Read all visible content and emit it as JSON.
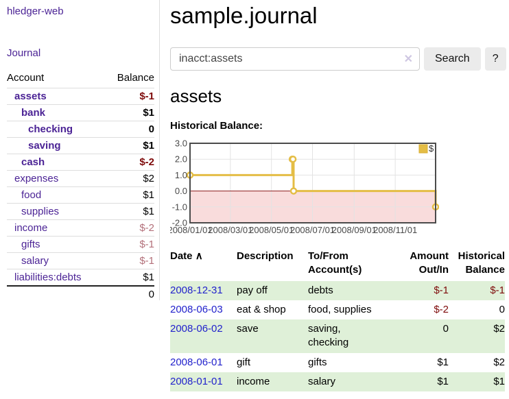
{
  "app": {
    "title": "hledger-web"
  },
  "sidebar": {
    "journal_label": "Journal",
    "account_header": "Account",
    "balance_header": "Balance",
    "accounts": [
      {
        "name": "assets",
        "indent": 1,
        "bold": true,
        "balance": "$-1",
        "neg": "strong",
        "link": "purple"
      },
      {
        "name": "bank",
        "indent": 2,
        "bold": true,
        "balance": "$1",
        "neg": "none",
        "link": "purple"
      },
      {
        "name": "checking",
        "indent": 3,
        "bold": true,
        "balance": "0",
        "neg": "none",
        "link": "purple"
      },
      {
        "name": "saving",
        "indent": 3,
        "bold": true,
        "balance": "$1",
        "neg": "none",
        "link": "purple"
      },
      {
        "name": "cash",
        "indent": 2,
        "bold": true,
        "balance": "$-2",
        "neg": "strong",
        "link": "purple"
      },
      {
        "name": "expenses",
        "indent": 1,
        "bold": false,
        "balance": "$2",
        "neg": "none",
        "link": "purple"
      },
      {
        "name": "food",
        "indent": 2,
        "bold": false,
        "balance": "$1",
        "neg": "none",
        "link": "purple"
      },
      {
        "name": "supplies",
        "indent": 2,
        "bold": false,
        "balance": "$1",
        "neg": "none",
        "link": "purple"
      },
      {
        "name": "income",
        "indent": 1,
        "bold": false,
        "balance": "$-2",
        "neg": "soft",
        "link": "purple"
      },
      {
        "name": "gifts",
        "indent": 2,
        "bold": false,
        "balance": "$-1",
        "neg": "soft",
        "link": "purple"
      },
      {
        "name": "salary",
        "indent": 2,
        "bold": false,
        "balance": "$-1",
        "neg": "soft",
        "link": "blue"
      },
      {
        "name": "liabilities:debts",
        "indent": 1,
        "bold": false,
        "balance": "$1",
        "neg": "none",
        "link": "purple"
      }
    ],
    "total": "0"
  },
  "main": {
    "title": "sample.journal",
    "search": {
      "value": "inacct:assets",
      "clear_icon": "✕",
      "search_button": "Search",
      "help_button": "?"
    },
    "account_heading": "assets",
    "chart_title": "Historical Balance:"
  },
  "chart_data": {
    "type": "line",
    "step": true,
    "title": "Historical Balance:",
    "x_start": "2008-01-01",
    "x_end": "2008-12-31",
    "ylim": [
      -2,
      3
    ],
    "y_ticks": [
      "3.0",
      "2.0",
      "1.0",
      "0.0",
      "-1.0",
      "-2.0"
    ],
    "x_ticks": [
      "2008/01/01",
      "2008/03/01",
      "2008/05/01",
      "2008/07/01",
      "2008/09/01",
      "2008/11/01"
    ],
    "series": [
      {
        "name": "$",
        "color": "#e4bd45",
        "points": [
          [
            "2008-01-01",
            1
          ],
          [
            "2008-06-01",
            2
          ],
          [
            "2008-06-02",
            2
          ],
          [
            "2008-06-03",
            0
          ],
          [
            "2008-12-31",
            -1
          ]
        ]
      }
    ],
    "legend_label": "$",
    "legend_position": "top-right",
    "grid": true,
    "grid_color": "#e3e3e3",
    "border_color": "#4b4b4b",
    "negative_region_color": "#f9dcdc",
    "zero_line_color": "#8b1a1a",
    "tick_text_color": "#484848"
  },
  "register": {
    "headers": {
      "date": "Date",
      "sort_icon": "∧",
      "description": "Description",
      "accounts": "To/From Account(s)",
      "amount": "Amount Out/In",
      "balance": "Historical Balance"
    },
    "rows": [
      {
        "date": "2008-12-31",
        "description": "pay off",
        "accounts": "debts",
        "amount": "$-1",
        "amount_neg": true,
        "balance": "$-1",
        "balance_neg": true
      },
      {
        "date": "2008-06-03",
        "description": "eat & shop",
        "accounts": "food, supplies",
        "amount": "$-2",
        "amount_neg": true,
        "balance": "0",
        "balance_neg": false
      },
      {
        "date": "2008-06-02",
        "description": "save",
        "accounts": "saving,\nchecking",
        "amount": "0",
        "amount_neg": false,
        "balance": "$2",
        "balance_neg": false
      },
      {
        "date": "2008-06-01",
        "description": "gift",
        "accounts": "gifts",
        "amount": "$1",
        "amount_neg": false,
        "balance": "$2",
        "balance_neg": false
      },
      {
        "date": "2008-01-01",
        "description": "income",
        "accounts": "salary",
        "amount": "$1",
        "amount_neg": false,
        "balance": "$1",
        "balance_neg": false
      }
    ]
  }
}
